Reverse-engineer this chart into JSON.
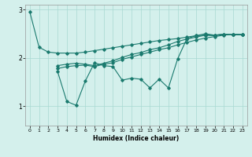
{
  "xlabel": "Humidex (Indice chaleur)",
  "background_color": "#d4f0ec",
  "line_color": "#1a7a6e",
  "grid_color": "#a8d8d2",
  "xlim": [
    -0.5,
    23.5
  ],
  "ylim": [
    0.6,
    3.1
  ],
  "yticks": [
    1,
    2,
    3
  ],
  "xticks": [
    0,
    1,
    2,
    3,
    4,
    5,
    6,
    7,
    8,
    9,
    10,
    11,
    12,
    13,
    14,
    15,
    16,
    17,
    18,
    19,
    20,
    21,
    22,
    23
  ],
  "s1_x": [
    0,
    1,
    2,
    3,
    4,
    5,
    6,
    7,
    8,
    9,
    10,
    11,
    12,
    13,
    14,
    15,
    16,
    17,
    18,
    19,
    20,
    21,
    22,
    23
  ],
  "s1_y": [
    2.95,
    2.22,
    2.12,
    2.1,
    2.1,
    2.1,
    2.12,
    2.15,
    2.18,
    2.21,
    2.24,
    2.27,
    2.3,
    2.33,
    2.36,
    2.38,
    2.4,
    2.43,
    2.46,
    2.47,
    2.46,
    2.49,
    2.48,
    2.48
  ],
  "s2_x": [
    3,
    4,
    5,
    6,
    7,
    8,
    9,
    10,
    11,
    12,
    13,
    14,
    15,
    16,
    17,
    18,
    19,
    20,
    21,
    22,
    23
  ],
  "s2_y": [
    1.72,
    1.1,
    1.02,
    1.52,
    1.9,
    1.84,
    1.82,
    1.54,
    1.58,
    1.56,
    1.38,
    1.56,
    1.38,
    1.98,
    2.4,
    2.46,
    2.5,
    2.47,
    2.49,
    2.49,
    2.48
  ],
  "s3_x": [
    3,
    4,
    5,
    6,
    7,
    8,
    9,
    10,
    11,
    12,
    13,
    14,
    15,
    16,
    17,
    18,
    19,
    20,
    21,
    22,
    23
  ],
  "s3_y": [
    1.78,
    1.82,
    1.84,
    1.85,
    1.82,
    1.87,
    1.9,
    1.97,
    2.02,
    2.07,
    2.12,
    2.17,
    2.21,
    2.27,
    2.32,
    2.37,
    2.41,
    2.44,
    2.47,
    2.49,
    2.48
  ],
  "s4_x": [
    3,
    4,
    5,
    6,
    7,
    8,
    9,
    10,
    11,
    12,
    13,
    14,
    15,
    16,
    17,
    18,
    19,
    20,
    21,
    22,
    23
  ],
  "s4_y": [
    1.84,
    1.87,
    1.89,
    1.87,
    1.84,
    1.89,
    1.94,
    2.01,
    2.07,
    2.11,
    2.17,
    2.21,
    2.27,
    2.34,
    2.39,
    2.43,
    2.47,
    2.47,
    2.49,
    2.49,
    2.48
  ]
}
